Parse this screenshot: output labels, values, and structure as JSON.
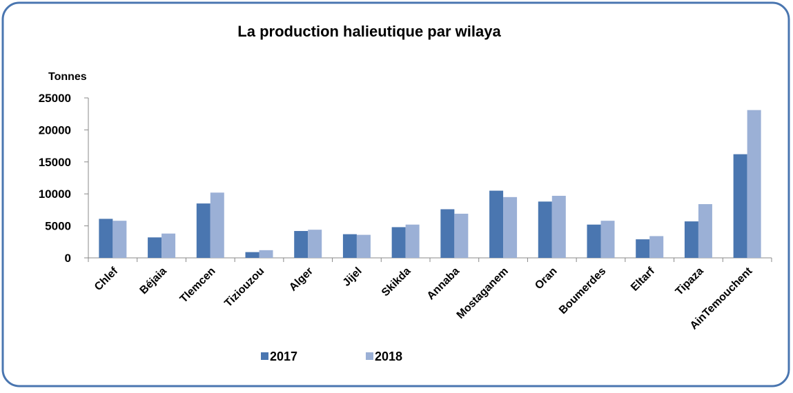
{
  "chart_data": {
    "type": "bar",
    "title": "La production halieutique par wilaya",
    "y_label": "Tonnes",
    "categories": [
      "Chlef",
      "Béjaia",
      "Tlemcen",
      "Tiziouzou",
      "Alger",
      "Jijel",
      "Skikda",
      "Annaba",
      "Mostaganem",
      "Oran",
      "Boumerdes",
      "Eltarf",
      "Tipaza",
      "AinTemouchent"
    ],
    "series": [
      {
        "name": "2017",
        "color": "#4a76b0",
        "values": [
          6100,
          3200,
          8500,
          900,
          4200,
          3700,
          4800,
          7600,
          10500,
          8800,
          5200,
          2900,
          5700,
          16200
        ]
      },
      {
        "name": "2018",
        "color": "#9bb0d6",
        "values": [
          5800,
          3800,
          10200,
          1200,
          4400,
          3600,
          5200,
          6900,
          9500,
          9700,
          5800,
          3400,
          8400,
          23100
        ]
      }
    ],
    "ylim": [
      0,
      25000
    ],
    "yticks": [
      0,
      5000,
      10000,
      15000,
      20000,
      25000
    ],
    "grid": false,
    "legend": "bottom"
  }
}
